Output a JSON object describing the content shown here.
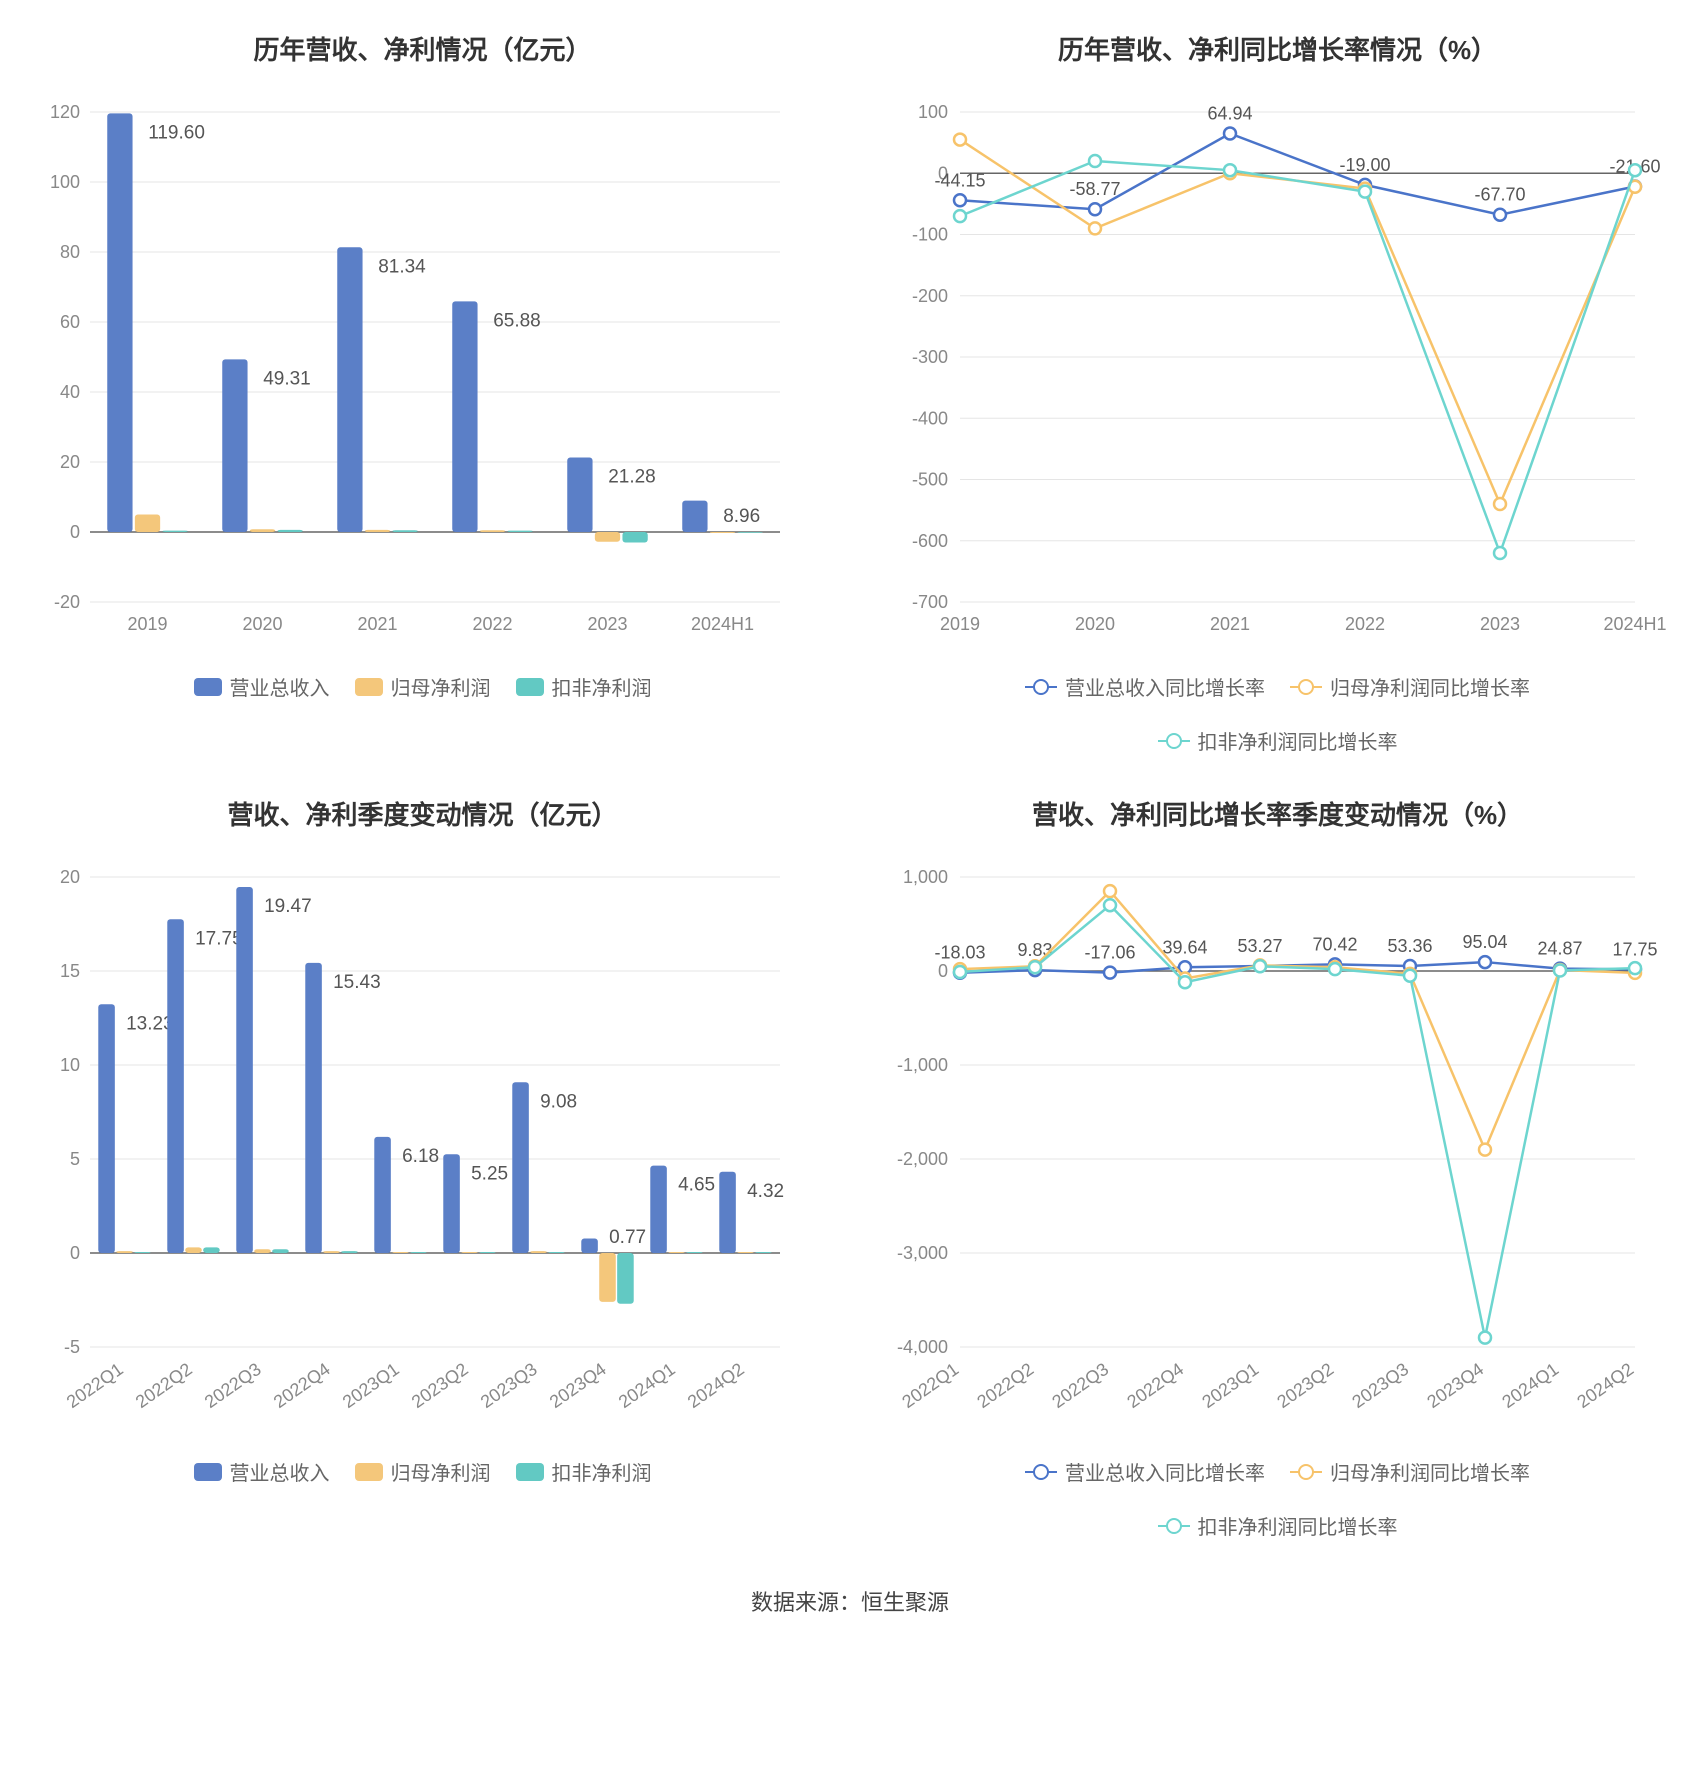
{
  "footer": "数据来源：恒生聚源",
  "colors": {
    "series_blue": "#5b7fc7",
    "series_orange": "#f4c77b",
    "series_teal": "#62c9c3",
    "line_blue": "#4a74c9",
    "line_orange": "#f7c36a",
    "line_teal": "#6dd5cf",
    "grid": "#e5e5e5",
    "axis_text": "#888888",
    "axis_line": "#666666",
    "label_text": "#555555"
  },
  "panels": {
    "annual_bar": {
      "title": "历年营收、净利情况（亿元）",
      "type": "bar",
      "categories": [
        "2019",
        "2020",
        "2021",
        "2022",
        "2023",
        "2024H1"
      ],
      "ylim": [
        -20,
        120
      ],
      "ytick_step": 20,
      "bar_width": 0.22,
      "bar_gap": 0.02,
      "series": [
        {
          "name": "营业总收入",
          "color": "#5b7fc7",
          "values": [
            119.6,
            49.31,
            81.34,
            65.88,
            21.28,
            8.96
          ],
          "show_label": true
        },
        {
          "name": "归母净利润",
          "color": "#f4c77b",
          "values": [
            5.0,
            0.8,
            0.6,
            0.5,
            -2.8,
            -0.3
          ],
          "show_label": false
        },
        {
          "name": "扣非净利润",
          "color": "#62c9c3",
          "values": [
            0.4,
            0.6,
            0.5,
            0.4,
            -3.0,
            -0.2
          ],
          "show_label": false
        }
      ],
      "legend": [
        "营业总收入",
        "归母净利润",
        "扣非净利润"
      ]
    },
    "annual_line": {
      "title": "历年营收、净利同比增长率情况（%）",
      "type": "line",
      "categories": [
        "2019",
        "2020",
        "2021",
        "2022",
        "2023",
        "2024H1"
      ],
      "ylim": [
        -700,
        100
      ],
      "ytick_step": 100,
      "series": [
        {
          "name": "营业总收入同比增长率",
          "color": "#4a74c9",
          "values": [
            -44.15,
            -58.77,
            64.94,
            -19.0,
            -67.7,
            -21.6
          ],
          "point_labels": [
            "-44.15",
            "-58.77",
            "64.94",
            "-19.00",
            "-67.70",
            "-21.60"
          ]
        },
        {
          "name": "归母净利润同比增长率",
          "color": "#f7c36a",
          "values": [
            55,
            -90,
            0,
            -25,
            -540,
            -22
          ],
          "point_labels": []
        },
        {
          "name": "扣非净利润同比增长率",
          "color": "#6dd5cf",
          "values": [
            -70,
            20,
            5,
            -30,
            -620,
            5
          ],
          "point_labels": []
        }
      ],
      "legend": [
        "营业总收入同比增长率",
        "归母净利润同比增长率",
        "扣非净利润同比增长率"
      ]
    },
    "quarterly_bar": {
      "title": "营收、净利季度变动情况（亿元）",
      "type": "bar",
      "categories": [
        "2022Q1",
        "2022Q2",
        "2022Q3",
        "2022Q4",
        "2023Q1",
        "2023Q2",
        "2023Q3",
        "2023Q4",
        "2024Q1",
        "2024Q2"
      ],
      "ylim": [
        -5,
        20
      ],
      "ytick_step": 5,
      "bar_width": 0.24,
      "bar_gap": 0.02,
      "x_rotate": true,
      "series": [
        {
          "name": "营业总收入",
          "color": "#5b7fc7",
          "values": [
            13.23,
            17.75,
            19.47,
            15.43,
            6.18,
            5.25,
            9.08,
            0.77,
            4.65,
            4.32
          ],
          "show_label": true
        },
        {
          "name": "归母净利润",
          "color": "#f4c77b",
          "values": [
            0.1,
            0.3,
            0.2,
            0.1,
            0.05,
            0.05,
            0.1,
            -2.6,
            0.05,
            0.05
          ],
          "show_label": false
        },
        {
          "name": "扣非净利润",
          "color": "#62c9c3",
          "values": [
            0.05,
            0.3,
            0.2,
            0.1,
            0.05,
            0.05,
            0.05,
            -2.7,
            0.05,
            0.05
          ],
          "show_label": false
        }
      ],
      "legend": [
        "营业总收入",
        "归母净利润",
        "扣非净利润"
      ]
    },
    "quarterly_line": {
      "title": "营收、净利同比增长率季度变动情况（%）",
      "type": "line",
      "categories": [
        "2022Q1",
        "2022Q2",
        "2022Q3",
        "2022Q4",
        "2023Q1",
        "2023Q2",
        "2023Q3",
        "2023Q4",
        "2024Q1",
        "2024Q2"
      ],
      "ylim": [
        -4000,
        1000
      ],
      "ytick_step": 1000,
      "x_rotate": true,
      "series": [
        {
          "name": "营业总收入同比增长率",
          "color": "#4a74c9",
          "values": [
            -18.03,
            9.83,
            -17.06,
            39.64,
            53.27,
            70.42,
            53.36,
            95.04,
            24.87,
            17.75
          ],
          "point_labels": [
            "-18.03",
            "9.83",
            "-17.06",
            "39.64",
            "53.27",
            "70.42",
            "53.36",
            "95.04",
            "24.87",
            "17.75"
          ]
        },
        {
          "name": "归母净利润同比增长率",
          "color": "#f7c36a",
          "values": [
            20,
            50,
            850,
            -80,
            60,
            40,
            -30,
            -1900,
            10,
            -20
          ],
          "point_labels": []
        },
        {
          "name": "扣非净利润同比增长率",
          "color": "#6dd5cf",
          "values": [
            -10,
            40,
            700,
            -120,
            50,
            20,
            -50,
            -3900,
            5,
            30
          ],
          "point_labels": []
        }
      ],
      "legend": [
        "营业总收入同比增长率",
        "归母净利润同比增长率",
        "扣非净利润同比增长率"
      ]
    }
  }
}
